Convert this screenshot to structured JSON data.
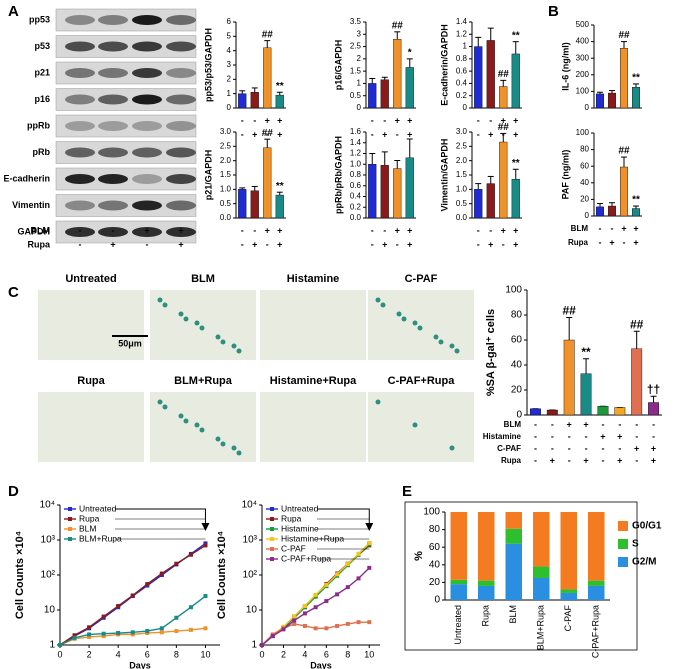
{
  "panels": [
    "A",
    "B",
    "C",
    "D",
    "E"
  ],
  "blot": {
    "proteins": [
      "pp53",
      "p53",
      "p21",
      "p16",
      "ppRb",
      "pRb",
      "E-cadherin",
      "Vimentin",
      "GAPDH"
    ],
    "rows": [
      {
        "label": "BLM",
        "signs": [
          "-",
          "-",
          "+",
          "+"
        ]
      },
      {
        "label": "Rupa",
        "signs": [
          "-",
          "+",
          "-",
          "+"
        ]
      }
    ]
  },
  "micrographs": {
    "labels": [
      "Untreated",
      "BLM",
      "Histamine",
      "C-PAF",
      "Rupa",
      "BLM+Rupa",
      "Histamine+Rupa",
      "C-PAF+Rupa"
    ],
    "scale_bar": "50μm"
  },
  "chart_data": [
    {
      "type": "bar",
      "ylabel": "pp53/p53/GAPDH",
      "values": [
        1.0,
        1.1,
        4.2,
        0.9
      ],
      "errors": [
        0.2,
        0.3,
        0.5,
        0.2
      ],
      "annotations": [
        null,
        null,
        "##",
        "**"
      ],
      "colors": [
        "#1f2bd6",
        "#8b1a1a",
        "#f0922b",
        "#1a8a86"
      ],
      "ylim": [
        0,
        6
      ],
      "yticks": [
        0,
        1,
        2,
        3,
        4,
        5,
        6
      ],
      "rows": [
        {
          "signs": [
            "-",
            "-",
            "+",
            "+"
          ]
        },
        {
          "signs": [
            "-",
            "+",
            "-",
            "+"
          ]
        }
      ]
    },
    {
      "type": "bar",
      "ylabel": "p16/GAPDH",
      "values": [
        1.0,
        1.15,
        2.8,
        1.65
      ],
      "errors": [
        0.2,
        0.1,
        0.3,
        0.35
      ],
      "annotations": [
        null,
        null,
        "##",
        "*"
      ],
      "colors": [
        "#1f2bd6",
        "#8b1a1a",
        "#f0922b",
        "#1a8a86"
      ],
      "ylim": [
        0,
        3.5
      ],
      "yticks": [
        0,
        0.5,
        1,
        1.5,
        2,
        2.5,
        3,
        3.5
      ],
      "rows": [
        {
          "signs": [
            "-",
            "-",
            "+",
            "+"
          ]
        },
        {
          "signs": [
            "-",
            "+",
            "-",
            "+"
          ]
        }
      ]
    },
    {
      "type": "bar",
      "ylabel": "E-cadherin/GAPDH",
      "values": [
        1.0,
        1.1,
        0.35,
        0.88
      ],
      "errors": [
        0.15,
        0.2,
        0.1,
        0.2
      ],
      "annotations": [
        null,
        null,
        "##",
        "**"
      ],
      "colors": [
        "#1f2bd6",
        "#8b1a1a",
        "#f0922b",
        "#1a8a86"
      ],
      "ylim": [
        0,
        1.4
      ],
      "yticks": [
        0,
        0.2,
        0.4,
        0.6,
        0.8,
        1,
        1.2,
        1.4
      ],
      "rows": [
        {
          "signs": [
            "-",
            "-",
            "+",
            "+"
          ]
        },
        {
          "signs": [
            "-",
            "+",
            "-",
            "+"
          ]
        }
      ]
    },
    {
      "type": "bar",
      "ylabel": "p21/GAPDH",
      "values": [
        1.0,
        0.95,
        2.45,
        0.8
      ],
      "errors": [
        0.05,
        0.15,
        0.3,
        0.1
      ],
      "annotations": [
        null,
        null,
        "##",
        "**"
      ],
      "colors": [
        "#1f2bd6",
        "#8b1a1a",
        "#f0922b",
        "#1a8a86"
      ],
      "ylim": [
        0,
        3
      ],
      "yticks": [
        {
          "value": 0,
          "label": "0.0"
        },
        0.5,
        {
          "value": 1,
          "label": "1.0"
        },
        1.5,
        {
          "value": 2,
          "label": "2.0"
        },
        2.5,
        {
          "value": 3,
          "label": "3.0"
        }
      ],
      "rows": [
        {
          "signs": [
            "-",
            "-",
            "+",
            "+"
          ]
        },
        {
          "signs": [
            "-",
            "+",
            "-",
            "+"
          ]
        }
      ]
    },
    {
      "type": "bar",
      "ylabel": "ppRb/pRb/GAPDH",
      "values": [
        1.0,
        0.98,
        0.92,
        1.12
      ],
      "errors": [
        0.2,
        0.25,
        0.15,
        0.35
      ],
      "annotations": [
        null,
        null,
        null,
        null
      ],
      "colors": [
        "#1f2bd6",
        "#8b1a1a",
        "#f0922b",
        "#1a8a86"
      ],
      "ylim": [
        0,
        1.6
      ],
      "yticks": [
        {
          "value": 0,
          "label": "0.0"
        },
        0.2,
        0.4,
        0.6,
        0.8,
        {
          "value": 1,
          "label": "1.0"
        },
        1.2,
        1.4,
        1.6
      ],
      "rows": [
        {
          "signs": [
            "-",
            "-",
            "+",
            "+"
          ]
        },
        {
          "signs": [
            "-",
            "+",
            "-",
            "+"
          ]
        }
      ]
    },
    {
      "type": "bar",
      "ylabel": "Vimentin/GAPDH",
      "values": [
        1.0,
        1.2,
        2.65,
        1.35
      ],
      "errors": [
        0.2,
        0.25,
        0.3,
        0.35
      ],
      "annotations": [
        null,
        null,
        "##",
        "**"
      ],
      "colors": [
        "#1f2bd6",
        "#8b1a1a",
        "#f0922b",
        "#1a8a86"
      ],
      "ylim": [
        0,
        3
      ],
      "yticks": [
        {
          "value": 0,
          "label": "0.0"
        },
        0.5,
        {
          "value": 1,
          "label": "1.0"
        },
        1.5,
        {
          "value": 2,
          "label": "2.0"
        },
        2.5,
        {
          "value": 3,
          "label": "3.0"
        }
      ],
      "rows": [
        {
          "signs": [
            "-",
            "-",
            "+",
            "+"
          ]
        },
        {
          "signs": [
            "-",
            "+",
            "-",
            "+"
          ]
        }
      ]
    },
    {
      "type": "bar",
      "ylabel": "IL-6 (ng/ml)",
      "values": [
        85,
        90,
        360,
        125
      ],
      "errors": [
        10,
        15,
        40,
        20
      ],
      "annotations": [
        null,
        null,
        "##",
        "**"
      ],
      "colors": [
        "#1f2bd6",
        "#8b1a1a",
        "#f0922b",
        "#1a8a86"
      ],
      "ylim": [
        0,
        500
      ],
      "yticks": [
        0,
        100,
        200,
        300,
        400,
        500
      ],
      "rows": []
    },
    {
      "type": "bar",
      "ylabel": "PAF (ng/ml)",
      "values": [
        11,
        12,
        59,
        9
      ],
      "errors": [
        4,
        4,
        12,
        3
      ],
      "annotations": [
        null,
        null,
        "##",
        "**"
      ],
      "colors": [
        "#1f2bd6",
        "#8b1a1a",
        "#f0922b",
        "#1a8a86"
      ],
      "ylim": [
        0,
        100
      ],
      "yticks": [
        0,
        20,
        40,
        60,
        80,
        100
      ],
      "rows": [
        {
          "label": "BLM",
          "signs": [
            "-",
            "-",
            "+",
            "+"
          ]
        },
        {
          "label": "Rupa",
          "signs": [
            "-",
            "+",
            "-",
            "+"
          ]
        }
      ]
    },
    {
      "type": "bar",
      "ylabel": "%SA β-gal⁺ cells",
      "values": [
        5,
        4,
        60,
        33,
        7,
        6,
        53,
        10
      ],
      "errors": [
        0,
        0,
        18,
        12,
        0,
        0,
        14,
        5
      ],
      "annotations": [
        null,
        null,
        "##",
        "**",
        null,
        null,
        "##",
        "††"
      ],
      "colors": [
        "#1f2bd6",
        "#8b1a1a",
        "#f0922b",
        "#1a8a86",
        "#1a9a3a",
        "#f5a623",
        "#e07050",
        "#8b2c8b"
      ],
      "ylim": [
        0,
        100
      ],
      "yticks": [
        0,
        20,
        40,
        60,
        80,
        100
      ],
      "rows": [
        {
          "label": "BLM",
          "signs": [
            "-",
            "-",
            "+",
            "+",
            "-",
            "-",
            "-",
            "-"
          ]
        },
        {
          "label": "Histamine",
          "signs": [
            "-",
            "-",
            "-",
            "-",
            "+",
            "+",
            "-",
            "-"
          ]
        },
        {
          "label": "C-PAF",
          "signs": [
            "-",
            "-",
            "-",
            "-",
            "-",
            "-",
            "+",
            "+"
          ]
        },
        {
          "label": "Rupa",
          "signs": [
            "-",
            "+",
            "-",
            "+",
            "-",
            "+",
            "-",
            "+"
          ]
        }
      ]
    },
    {
      "type": "line",
      "ylabel": "Cell Counts ×10⁴",
      "xlabel": "Days",
      "log_y": true,
      "x": [
        0,
        1,
        2,
        3,
        4,
        5,
        6,
        7,
        8,
        9,
        10
      ],
      "series": [
        {
          "name": "Untreated",
          "color": "#1f2bd6",
          "values": [
            1,
            1.8,
            3,
            6,
            12,
            25,
            50,
            100,
            200,
            400,
            800
          ]
        },
        {
          "name": "Rupa",
          "color": "#8b1a1a",
          "values": [
            1,
            1.9,
            3.2,
            6.5,
            13,
            26,
            55,
            110,
            210,
            380,
            700
          ]
        },
        {
          "name": "BLM",
          "color": "#f0922b",
          "values": [
            1,
            1.5,
            1.7,
            1.8,
            2,
            2,
            2.2,
            2.3,
            2.5,
            2.7,
            3
          ]
        },
        {
          "name": "BLM+Rupa",
          "color": "#1a8a86",
          "values": [
            1,
            1.6,
            2,
            2.1,
            2.2,
            2.3,
            2.5,
            3,
            6,
            12,
            25
          ]
        }
      ],
      "xlim": [
        0,
        11
      ],
      "xticks": [
        0,
        2,
        4,
        6,
        8,
        10
      ],
      "ylim": [
        1,
        10000
      ],
      "yticks": [
        1,
        10,
        {
          "value": 100,
          "label": "10²"
        },
        {
          "value": 1000,
          "label": "10³"
        },
        {
          "value": 10000,
          "label": "10⁴"
        }
      ]
    },
    {
      "type": "line",
      "ylabel": "Cell Counts ×10⁴",
      "xlabel": "Days",
      "log_y": true,
      "x": [
        0,
        1,
        2,
        3,
        4,
        5,
        6,
        7,
        8,
        9,
        10
      ],
      "series": [
        {
          "name": "Untreated",
          "color": "#1f2bd6",
          "values": [
            1,
            1.8,
            3,
            6,
            12,
            25,
            50,
            100,
            200,
            400,
            800
          ]
        },
        {
          "name": "Rupa",
          "color": "#8b1a1a",
          "values": [
            1,
            1.9,
            3.2,
            6.5,
            13,
            26,
            55,
            110,
            210,
            380,
            700
          ]
        },
        {
          "name": "Histamine",
          "color": "#1a9a3a",
          "values": [
            1,
            1.8,
            3.1,
            6.2,
            12,
            24,
            48,
            95,
            190,
            380,
            750
          ]
        },
        {
          "name": "Histamine+Rupa",
          "color": "#f5c518",
          "values": [
            1,
            1.9,
            3.3,
            6.6,
            13,
            27,
            52,
            105,
            205,
            400,
            820
          ]
        },
        {
          "name": "C-PAF",
          "color": "#e07050",
          "values": [
            1,
            2,
            3,
            4,
            3.5,
            3,
            3,
            3.5,
            4,
            4.5,
            4.5
          ]
        },
        {
          "name": "C-PAF+Rupa",
          "color": "#8b2c8b",
          "values": [
            1,
            1.8,
            2.8,
            5,
            8,
            12,
            18,
            28,
            45,
            80,
            160
          ]
        }
      ],
      "xlim": [
        0,
        11
      ],
      "xticks": [
        0,
        2,
        4,
        6,
        8,
        10
      ],
      "ylim": [
        1,
        10000
      ],
      "yticks": [
        1,
        10,
        {
          "value": 100,
          "label": "10²"
        },
        {
          "value": 1000,
          "label": "10³"
        },
        {
          "value": 10000,
          "label": "10⁴"
        }
      ]
    },
    {
      "type": "stacked_bar",
      "ylabel": "%",
      "categories": [
        "Untreated",
        "Rupa",
        "BLM",
        "BLM+Rupa",
        "C-PAF",
        "C-PAF+Rupa"
      ],
      "series": [
        {
          "name": "G0/G1",
          "color": "#f47b20",
          "values": [
            77,
            78,
            19,
            62,
            88,
            78
          ]
        },
        {
          "name": "S",
          "color": "#2dbf2d",
          "values": [
            5,
            6,
            17,
            13,
            4,
            6
          ]
        },
        {
          "name": "G2/M",
          "color": "#2a8fe0",
          "values": [
            18,
            16,
            64,
            25,
            8,
            16
          ]
        }
      ],
      "ylim": [
        0,
        100
      ],
      "yticks": [
        0,
        20,
        40,
        60,
        80,
        100
      ]
    }
  ]
}
